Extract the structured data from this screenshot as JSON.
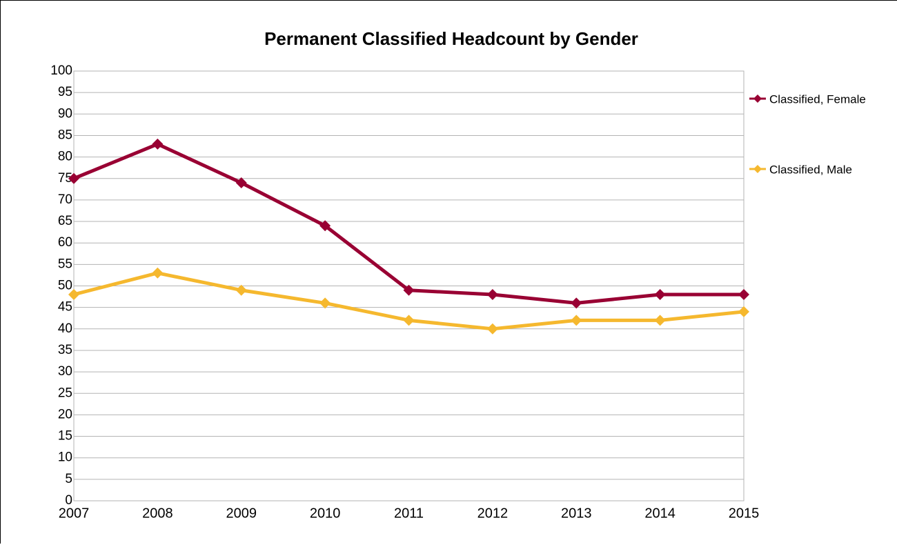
{
  "chart_data": {
    "type": "line",
    "title": "Permanent Classified Headcount by Gender",
    "categories": [
      "2007",
      "2008",
      "2009",
      "2010",
      "2011",
      "2012",
      "2013",
      "2014",
      "2015"
    ],
    "series": [
      {
        "name": "Classified, Female",
        "color": "#990033",
        "values": [
          75,
          83,
          74,
          64,
          49,
          48,
          46,
          48,
          48
        ]
      },
      {
        "name": "Classified, Male",
        "color": "#f5b82e",
        "values": [
          48,
          53,
          49,
          46,
          42,
          40,
          42,
          42,
          44
        ]
      }
    ],
    "ylim": [
      0,
      100
    ],
    "yticks": [
      0,
      5,
      10,
      15,
      20,
      25,
      30,
      35,
      40,
      45,
      50,
      55,
      60,
      65,
      70,
      75,
      80,
      85,
      90,
      95,
      100
    ],
    "grid": true,
    "legend": "right"
  }
}
